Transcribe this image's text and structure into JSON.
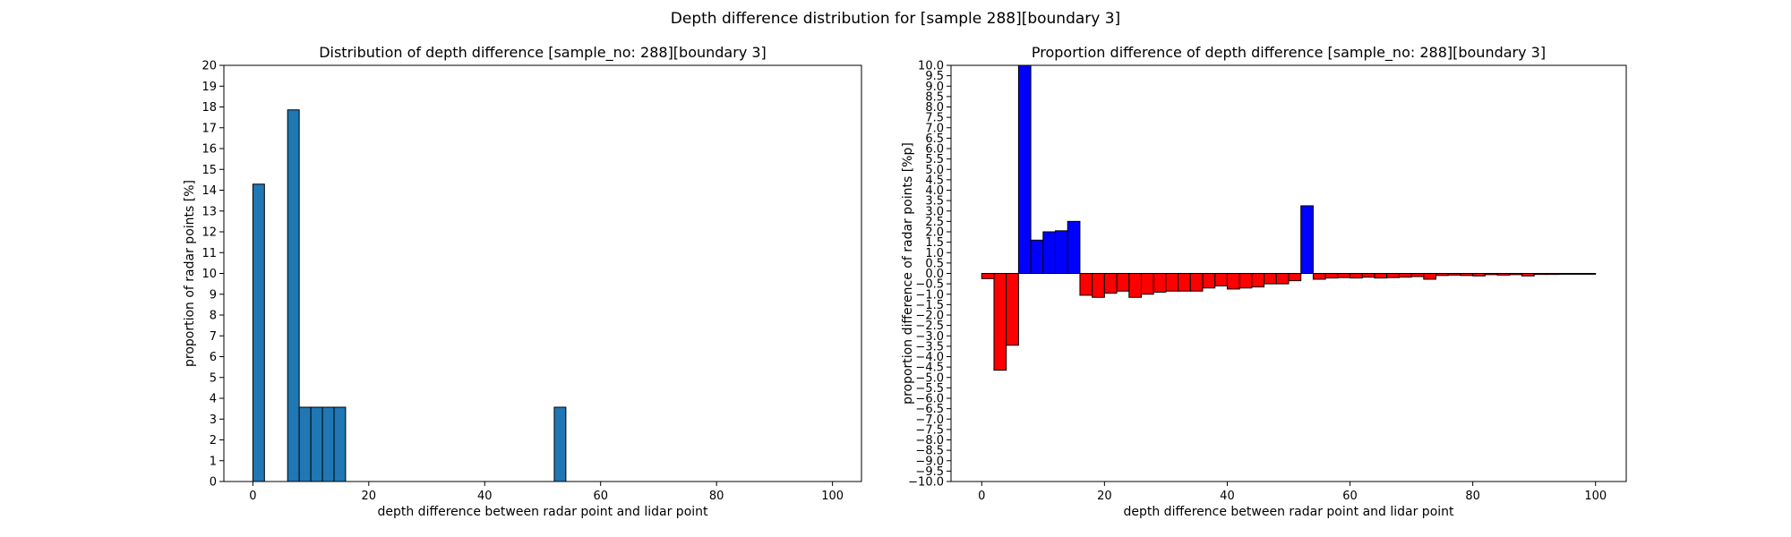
{
  "figure": {
    "suptitle": "Depth difference distribution for [sample 288][boundary 3]"
  },
  "chart_data": [
    {
      "type": "bar",
      "title": "Distribution of depth difference [sample_no: 288][boundary 3]",
      "xlabel": "depth difference between radar point and lidar point",
      "ylabel": "proportion of radar points [%]",
      "xlim": [
        -5,
        105
      ],
      "ylim": [
        0,
        20
      ],
      "bin_width": 2,
      "xticks": [
        0,
        20,
        40,
        60,
        80,
        100
      ],
      "yticks": [
        0,
        1,
        2,
        3,
        4,
        5,
        6,
        7,
        8,
        9,
        10,
        11,
        12,
        13,
        14,
        15,
        16,
        17,
        18,
        19,
        20
      ],
      "bar_color": "#1f77b4",
      "edge_color": "#000000",
      "bars": [
        {
          "x": 0,
          "value": 14.29
        },
        {
          "x": 6,
          "value": 17.86
        },
        {
          "x": 8,
          "value": 3.57
        },
        {
          "x": 10,
          "value": 3.57
        },
        {
          "x": 12,
          "value": 3.57
        },
        {
          "x": 14,
          "value": 3.57
        },
        {
          "x": 52,
          "value": 3.57
        }
      ]
    },
    {
      "type": "bar",
      "title": "Proportion difference of depth difference [sample_no: 288][boundary 3]",
      "xlabel": "depth difference between radar point and lidar point",
      "ylabel": "proportion difference of radar points [%p]",
      "xlim": [
        -5,
        105
      ],
      "ylim": [
        -10,
        10
      ],
      "bin_width": 2,
      "xticks": [
        0,
        20,
        40,
        60,
        80,
        100
      ],
      "yticks": [
        -10,
        -9.5,
        -9,
        -8.5,
        -8,
        -7.5,
        -7,
        -6.5,
        -6,
        -5.5,
        -5,
        -4.5,
        -4,
        -3.5,
        -3,
        -2.5,
        -2,
        -1.5,
        -1,
        -0.5,
        0,
        0.5,
        1,
        1.5,
        2,
        2.5,
        3,
        3.5,
        4,
        4.5,
        5,
        5.5,
        6,
        6.5,
        7,
        7.5,
        8,
        8.5,
        9,
        9.5,
        10
      ],
      "positive_color": "#0000ff",
      "negative_color": "#ff0000",
      "edge_color": "#000000",
      "bars": [
        {
          "x": 0,
          "value": -0.25
        },
        {
          "x": 2,
          "value": -4.65
        },
        {
          "x": 4,
          "value": -3.45
        },
        {
          "x": 6,
          "value": 10.0
        },
        {
          "x": 8,
          "value": 1.6
        },
        {
          "x": 10,
          "value": 2.0
        },
        {
          "x": 12,
          "value": 2.05
        },
        {
          "x": 14,
          "value": 2.5
        },
        {
          "x": 16,
          "value": -1.05
        },
        {
          "x": 18,
          "value": -1.15
        },
        {
          "x": 20,
          "value": -0.95
        },
        {
          "x": 22,
          "value": -0.85
        },
        {
          "x": 24,
          "value": -1.15
        },
        {
          "x": 26,
          "value": -1.0
        },
        {
          "x": 28,
          "value": -0.9
        },
        {
          "x": 30,
          "value": -0.85
        },
        {
          "x": 32,
          "value": -0.85
        },
        {
          "x": 34,
          "value": -0.85
        },
        {
          "x": 36,
          "value": -0.7
        },
        {
          "x": 38,
          "value": -0.6
        },
        {
          "x": 40,
          "value": -0.75
        },
        {
          "x": 42,
          "value": -0.7
        },
        {
          "x": 44,
          "value": -0.65
        },
        {
          "x": 46,
          "value": -0.5
        },
        {
          "x": 48,
          "value": -0.5
        },
        {
          "x": 50,
          "value": -0.35
        },
        {
          "x": 52,
          "value": 3.25
        },
        {
          "x": 54,
          "value": -0.28
        },
        {
          "x": 56,
          "value": -0.22
        },
        {
          "x": 58,
          "value": -0.2
        },
        {
          "x": 60,
          "value": -0.22
        },
        {
          "x": 62,
          "value": -0.18
        },
        {
          "x": 64,
          "value": -0.22
        },
        {
          "x": 66,
          "value": -0.2
        },
        {
          "x": 68,
          "value": -0.18
        },
        {
          "x": 70,
          "value": -0.15
        },
        {
          "x": 72,
          "value": -0.28
        },
        {
          "x": 74,
          "value": -0.1
        },
        {
          "x": 76,
          "value": -0.08
        },
        {
          "x": 78,
          "value": -0.1
        },
        {
          "x": 80,
          "value": -0.12
        },
        {
          "x": 82,
          "value": -0.06
        },
        {
          "x": 84,
          "value": -0.08
        },
        {
          "x": 86,
          "value": -0.06
        },
        {
          "x": 88,
          "value": -0.12
        },
        {
          "x": 90,
          "value": -0.05
        },
        {
          "x": 92,
          "value": -0.05
        },
        {
          "x": 94,
          "value": -0.04
        },
        {
          "x": 96,
          "value": -0.04
        },
        {
          "x": 98,
          "value": -0.04
        }
      ]
    }
  ]
}
